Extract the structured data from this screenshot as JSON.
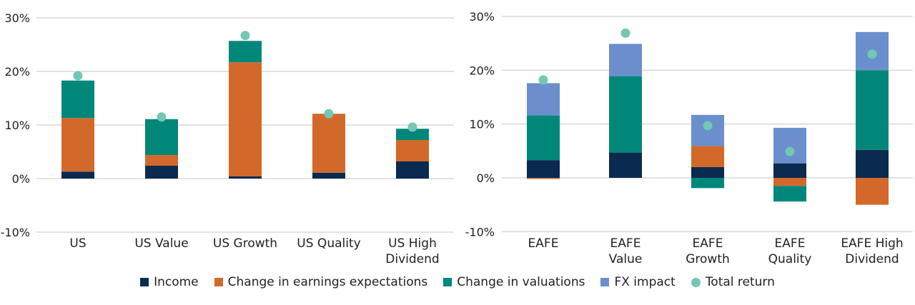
{
  "colors": {
    "income": "#0b2a4f",
    "earnings": "#d2692a",
    "valuations": "#00877a",
    "fx": "#6b8fcc",
    "total": "#72c8b4"
  },
  "legend": [
    {
      "key": "income",
      "label": "Income"
    },
    {
      "key": "earnings",
      "label": "Change in earnings expectations"
    },
    {
      "key": "valuations",
      "label": "Change in valuations"
    },
    {
      "key": "fx",
      "label": "FX impact"
    },
    {
      "key": "total",
      "label": "Total return"
    }
  ],
  "chart_data": [
    {
      "type": "bar",
      "stacked": true,
      "ylim": [
        -10,
        30
      ],
      "yticks": [
        "30%",
        "20%",
        "10%",
        "0%",
        "-10%"
      ],
      "ytick_values": [
        30,
        20,
        10,
        0,
        -10
      ],
      "grid": true,
      "categories": [
        [
          "US"
        ],
        [
          "US Value"
        ],
        [
          "US Growth"
        ],
        [
          "US Quality"
        ],
        [
          "US High",
          "Dividend"
        ]
      ],
      "series": [
        {
          "name": "Income",
          "key": "income",
          "values": [
            1.3,
            2.4,
            0.4,
            1.1,
            3.2
          ]
        },
        {
          "name": "Change in earnings expectations",
          "key": "earnings",
          "values": [
            10.0,
            2.0,
            21.3,
            11.0,
            4.0
          ]
        },
        {
          "name": "Change in valuations",
          "key": "valuations",
          "values": [
            7.0,
            6.7,
            4.0,
            0,
            2.1
          ]
        },
        {
          "name": "FX impact",
          "key": "fx",
          "values": [
            0,
            0,
            0,
            0,
            0
          ]
        }
      ],
      "total_return": [
        19.2,
        11.5,
        26.7,
        12.1,
        9.6
      ]
    },
    {
      "type": "bar",
      "stacked": true,
      "ylim": [
        -10,
        30
      ],
      "yticks": [
        "30%",
        "20%",
        "10%",
        "0%",
        "-10%"
      ],
      "ytick_values": [
        30,
        20,
        10,
        0,
        -10
      ],
      "grid": true,
      "categories": [
        [
          "EAFE"
        ],
        [
          "EAFE",
          "Value"
        ],
        [
          "EAFE",
          "Growth"
        ],
        [
          "EAFE",
          "Quality"
        ],
        [
          "EAFE High",
          "Dividend"
        ]
      ],
      "series": [
        {
          "name": "Income",
          "key": "income",
          "values": [
            3.3,
            4.7,
            2.0,
            2.7,
            5.2
          ]
        },
        {
          "name": "Change in earnings expectations",
          "key": "earnings",
          "values": [
            -0.2,
            0,
            3.9,
            -1.5,
            -5.0
          ]
        },
        {
          "name": "Change in valuations",
          "key": "valuations",
          "values": [
            8.3,
            14.2,
            -1.9,
            -2.9,
            14.8
          ]
        },
        {
          "name": "FX impact",
          "key": "fx",
          "values": [
            6.0,
            6.0,
            5.8,
            6.6,
            7.1
          ]
        }
      ],
      "total_return": [
        18.2,
        26.9,
        9.7,
        4.9,
        23.0
      ]
    }
  ]
}
